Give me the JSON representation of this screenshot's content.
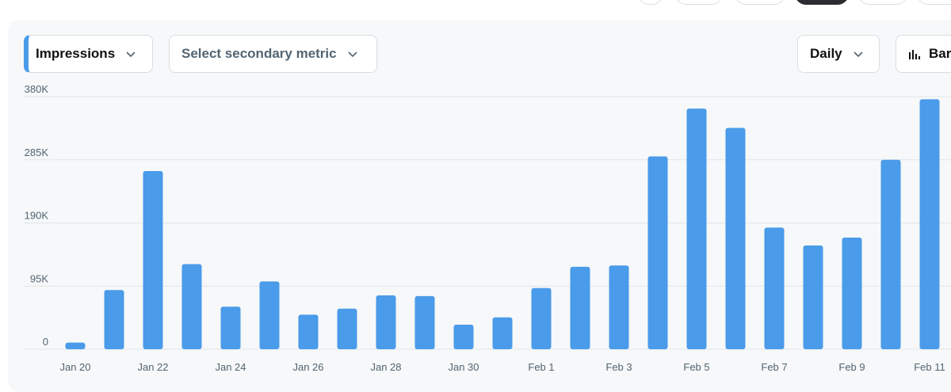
{
  "controls": {
    "primary_metric": "Impressions",
    "secondary_metric_placeholder": "Select secondary metric",
    "interval": "Daily",
    "chart_type": "Bar"
  },
  "colors": {
    "bar": "#4a9be9",
    "grid": "#e1e6ea",
    "card_bg": "#f6f8f9"
  },
  "chart_data": {
    "type": "bar",
    "categories": [
      "Jan 20",
      "Jan 21",
      "Jan 22",
      "Jan 23",
      "Jan 24",
      "Jan 25",
      "Jan 26",
      "Jan 27",
      "Jan 28",
      "Jan 29",
      "Jan 30",
      "Jan 31",
      "Feb 1",
      "Feb 2",
      "Feb 3",
      "Feb 4",
      "Feb 5",
      "Feb 6",
      "Feb 7",
      "Feb 8",
      "Feb 9",
      "Feb 10",
      "Feb 11"
    ],
    "x_tick_labels": [
      "Jan 20",
      "Jan 22",
      "Jan 24",
      "Jan 26",
      "Jan 28",
      "Jan 30",
      "Feb 1",
      "Feb 3",
      "Feb 5",
      "Feb 7",
      "Feb 9",
      "Feb 11"
    ],
    "series": [
      {
        "values": [
          10000,
          89000,
          268000,
          128000,
          64000,
          102000,
          52000,
          61000,
          81000,
          80000,
          37000,
          48000,
          92000,
          124000,
          126000,
          290000,
          362000,
          333000,
          183000,
          156000,
          168000,
          285000,
          376000
        ]
      }
    ],
    "y_ticks": [
      {
        "value": 0,
        "label": "0"
      },
      {
        "value": 95000,
        "label": "95K"
      },
      {
        "value": 190000,
        "label": "190K"
      },
      {
        "value": 285000,
        "label": "285K"
      },
      {
        "value": 380000,
        "label": "380K"
      }
    ],
    "ylim": [
      0,
      380000
    ],
    "grid": true,
    "legend": "none"
  }
}
